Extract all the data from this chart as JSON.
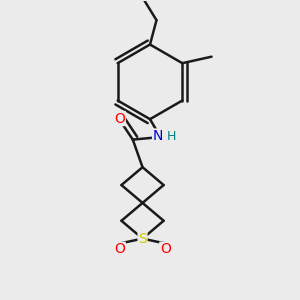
{
  "bg_color": "#ebebeb",
  "bond_color": "#1a1a1a",
  "bond_width": 1.8,
  "atom_colors": {
    "O": "#ff0000",
    "N": "#0000cd",
    "S": "#cccc00",
    "H": "#008080"
  },
  "font_size": 10,
  "fig_size": [
    3.0,
    3.0
  ],
  "dpi": 100
}
